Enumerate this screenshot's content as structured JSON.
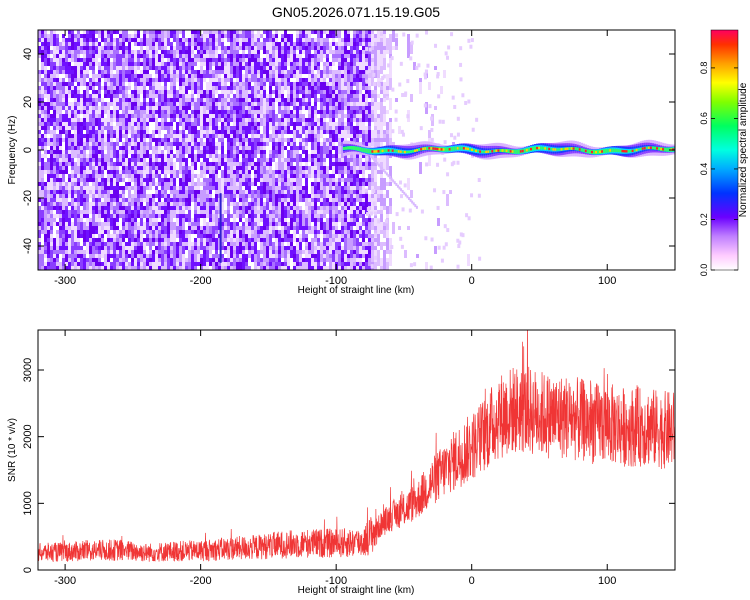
{
  "figure": {
    "title": "GN05.2026.071.15.19.G05"
  },
  "chart_data": [
    {
      "type": "heatmap",
      "xlabel": "Height of straight line (km)",
      "ylabel": "Frequency (Hz)",
      "xlim": [
        -320,
        150
      ],
      "ylim": [
        -50,
        50
      ],
      "x_ticks": [
        -300,
        -200,
        -100,
        0,
        100
      ],
      "y_ticks": [
        -40,
        -20,
        0,
        20,
        40
      ],
      "grid": false,
      "colorbar": {
        "label": "Normalized spectral amplitude",
        "range": [
          0,
          0.95
        ],
        "ticks": [
          0.0,
          0.2,
          0.4,
          0.6,
          0.8
        ]
      },
      "features": {
        "noise_region_x": [
          -320,
          -60
        ],
        "signal_line_frequency": 0,
        "signal_line_x": [
          -95,
          150
        ],
        "signal_peak_amplitude": 0.9
      }
    },
    {
      "type": "line",
      "xlabel": "Height of straight line (km)",
      "ylabel": "SNR (10 * v/v)",
      "xlim": [
        -320,
        150
      ],
      "ylim": [
        0,
        3600
      ],
      "x_ticks": [
        -300,
        -200,
        -100,
        0,
        100
      ],
      "y_ticks": [
        0,
        1000,
        2000,
        3000
      ],
      "grid": false,
      "series": [
        {
          "color": "#f03535",
          "x": [
            -320,
            -300,
            -280,
            -260,
            -240,
            -220,
            -200,
            -180,
            -160,
            -140,
            -120,
            -100,
            -80,
            -70,
            -60,
            -50,
            -40,
            -30,
            -20,
            -10,
            0,
            10,
            20,
            30,
            40,
            50,
            60,
            70,
            80,
            90,
            100,
            110,
            120,
            130,
            140,
            150
          ],
          "y": [
            260,
            270,
            290,
            300,
            260,
            280,
            290,
            320,
            340,
            380,
            400,
            400,
            420,
            620,
            800,
            900,
            1050,
            1300,
            1500,
            1700,
            1850,
            2050,
            2300,
            2400,
            2400,
            2350,
            2300,
            2300,
            2250,
            2200,
            2200,
            2150,
            2150,
            2150,
            2100,
            2100
          ]
        }
      ]
    }
  ]
}
